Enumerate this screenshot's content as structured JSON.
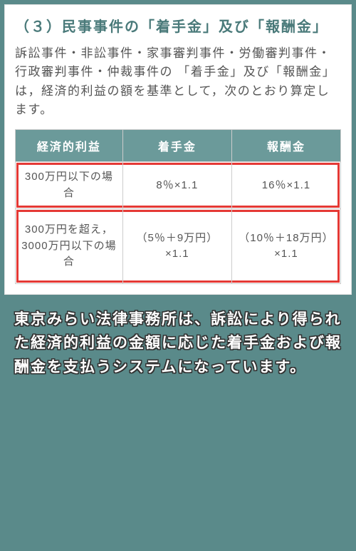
{
  "colors": {
    "page_bg": "#5a8a8a",
    "card_bg": "#ffffff",
    "title_color": "#4a7a7a",
    "desc_color": "#555555",
    "table_header_bg": "#6b9a9a",
    "table_header_text": "#ffffff",
    "table_border": "#cccccc",
    "highlight_border": "#e53935",
    "caption_text": "#ffffff",
    "caption_outline": "#333333"
  },
  "typography": {
    "title_fontsize": 20,
    "desc_fontsize": 17,
    "table_header_fontsize": 16,
    "table_cell_fontsize": 15,
    "caption_fontsize": 21
  },
  "document": {
    "title": "（３）民事事件の「着手金」及び「報酬金」",
    "description": "訴訟事件・非訟事件・家事審判事件・労働審判事件・行政審判事件・仲裁事件の 「着手金」及び「報酬金」は，経済的利益の額を基準として，次のとおり算定します。"
  },
  "table": {
    "type": "table",
    "columns": [
      "経済的利益",
      "着手金",
      "報酬金"
    ],
    "column_widths": [
      "33%",
      "33.5%",
      "33.5%"
    ],
    "rows": [
      {
        "highlighted": true,
        "cells": [
          "300万円以下の場合",
          "8％×1.1",
          "16％×1.1"
        ]
      },
      {
        "highlighted": true,
        "tall": true,
        "cells": [
          "300万円を超え，\n3000万円以下の場合",
          "（5％＋9万円）×1.1",
          "（10％＋18万円）×1.1"
        ]
      }
    ]
  },
  "caption": "東京みらい法律事務所は、訴訟により得られた経済的利益の金額に応じた着手金および報酬金を支払うシステムになっています。"
}
